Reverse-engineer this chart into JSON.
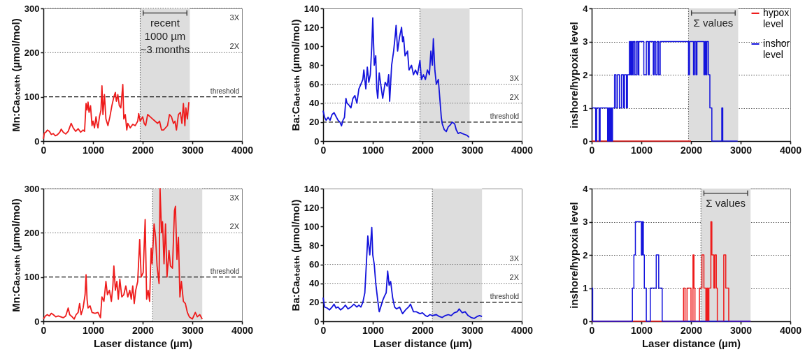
{
  "chart_data": [
    {
      "type": "line",
      "ylabel": "Mn:Caₒₜₒₗᵢₜₕ (µmol/mol)",
      "xlim": [
        0,
        4000
      ],
      "xticks": [
        0,
        1000,
        2000,
        3000,
        4000
      ],
      "ylim": [
        0,
        300
      ],
      "yticks": [
        0,
        100,
        200,
        300
      ],
      "grid": false,
      "color": "#ee1c1c",
      "x": [
        0,
        20,
        50,
        80,
        120,
        160,
        200,
        240,
        280,
        330,
        360,
        400,
        450,
        500,
        560,
        600,
        650,
        700,
        750,
        800,
        830,
        860,
        880,
        900,
        920,
        950,
        980,
        1000,
        1030,
        1060,
        1080,
        1100,
        1130,
        1160,
        1180,
        1200,
        1230,
        1260,
        1300,
        1340,
        1380,
        1420,
        1450,
        1470,
        1500,
        1530,
        1560,
        1600,
        1620,
        1650,
        1680,
        1700,
        1750,
        1800,
        1850,
        1900,
        1920,
        1950,
        2000,
        2030,
        2060,
        2100,
        2150,
        2200,
        2250,
        2300,
        2340,
        2380,
        2420,
        2460,
        2500,
        2540,
        2580,
        2620,
        2650,
        2680,
        2720,
        2760,
        2790,
        2820,
        2850,
        2870,
        2900,
        2930
      ],
      "values": [
        5,
        18,
        20,
        25,
        22,
        15,
        17,
        12,
        14,
        20,
        27,
        20,
        16,
        22,
        40,
        30,
        22,
        28,
        20,
        25,
        22,
        85,
        70,
        88,
        65,
        80,
        35,
        45,
        30,
        55,
        40,
        30,
        55,
        70,
        125,
        60,
        105,
        50,
        35,
        55,
        80,
        100,
        110,
        90,
        105,
        80,
        75,
        128,
        50,
        60,
        25,
        40,
        30,
        38,
        35,
        45,
        62,
        45,
        55,
        40,
        35,
        60,
        55,
        50,
        45,
        40,
        45,
        25,
        25,
        30,
        35,
        60,
        55,
        40,
        45,
        25,
        60,
        65,
        40,
        85,
        35,
        75,
        50,
        88
      ],
      "bands": [
        {
          "axis": "x",
          "from": 1950,
          "to": 2950,
          "color": "#dddddd"
        }
      ],
      "ref_lines": [
        {
          "axis": "x",
          "value": 1950,
          "line_style": "dotted",
          "color": "#555555"
        },
        {
          "axis": "y",
          "value": 100,
          "label": "threshold",
          "line_style": "dashed",
          "color": "#111111"
        },
        {
          "axis": "y",
          "value": 200,
          "label": "2X",
          "line_style": "dotted",
          "color": "#777777"
        },
        {
          "axis": "y",
          "value": 300,
          "label": "3X",
          "line_style": "dotted",
          "color": "#777777"
        }
      ],
      "annotations": [
        "recent\n1000 µm\n~3 months"
      ]
    },
    {
      "type": "line",
      "ylabel": "Ba:Caₒₜₒₗᵢₜₕ (µmol/mol)",
      "xlim": [
        0,
        4000
      ],
      "xticks": [
        0,
        1000,
        2000,
        3000,
        4000
      ],
      "ylim": [
        0,
        140
      ],
      "yticks": [
        0,
        20,
        40,
        60,
        80,
        100,
        120,
        140
      ],
      "grid": false,
      "color": "#1414dc",
      "x": [
        0,
        30,
        60,
        100,
        140,
        180,
        220,
        260,
        300,
        340,
        370,
        400,
        430,
        460,
        480,
        520,
        560,
        600,
        640,
        680,
        720,
        760,
        800,
        820,
        860,
        890,
        920,
        950,
        980,
        1000,
        1030,
        1060,
        1080,
        1100,
        1130,
        1160,
        1200,
        1250,
        1290,
        1320,
        1340,
        1380,
        1420,
        1450,
        1470,
        1500,
        1540,
        1580,
        1600,
        1620,
        1650,
        1700,
        1730,
        1780,
        1820,
        1860,
        1900,
        1950,
        1980,
        2020,
        2060,
        2100,
        2140,
        2170,
        2200,
        2220,
        2250,
        2280,
        2320,
        2350,
        2380,
        2400,
        2440,
        2480,
        2520,
        2560,
        2600,
        2650,
        2680,
        2720,
        2760,
        2800,
        2850,
        2900,
        2940
      ],
      "values": [
        32,
        25,
        22,
        25,
        22,
        28,
        30,
        26,
        22,
        20,
        16,
        22,
        25,
        45,
        40,
        38,
        35,
        45,
        48,
        40,
        55,
        60,
        65,
        75,
        55,
        78,
        62,
        70,
        100,
        130,
        80,
        90,
        55,
        45,
        72,
        60,
        45,
        62,
        58,
        70,
        42,
        80,
        95,
        110,
        122,
        95,
        110,
        120,
        105,
        110,
        90,
        95,
        75,
        80,
        70,
        75,
        70,
        85,
        65,
        70,
        65,
        75,
        70,
        95,
        80,
        108,
        75,
        60,
        65,
        45,
        25,
        18,
        12,
        10,
        15,
        17,
        20,
        18,
        12,
        8,
        9,
        8,
        7,
        6,
        4
      ],
      "bands": [
        {
          "axis": "x",
          "from": 1950,
          "to": 2950,
          "color": "#dddddd"
        }
      ],
      "ref_lines": [
        {
          "axis": "x",
          "value": 1950,
          "line_style": "dotted",
          "color": "#555555"
        },
        {
          "axis": "y",
          "value": 20,
          "label": "threshold",
          "line_style": "dashed",
          "color": "#111111"
        },
        {
          "axis": "y",
          "value": 40,
          "label": "2X",
          "line_style": "dotted",
          "color": "#777777"
        },
        {
          "axis": "y",
          "value": 60,
          "label": "3X",
          "line_style": "dotted",
          "color": "#777777"
        }
      ]
    },
    {
      "type": "step",
      "ylabel": "inshore/hypoxia level",
      "xlim": [
        0,
        4000
      ],
      "xticks": [
        0,
        1000,
        2000,
        3000,
        4000
      ],
      "ylim": [
        0,
        4
      ],
      "yticks": [
        0,
        1,
        2,
        3,
        4
      ],
      "grid": "y",
      "legend": "top right",
      "series": [
        {
          "name": "hypox level",
          "color": "#ee1c1c",
          "x": [
            0,
            2000
          ],
          "values": [
            0,
            0
          ]
        },
        {
          "name": "inshor level",
          "color": "#1414dc",
          "x": [
            0,
            80,
            100,
            150,
            170,
            320,
            340,
            360,
            380,
            400,
            420,
            460,
            490,
            520,
            560,
            600,
            640,
            660,
            700,
            720,
            760,
            780,
            800,
            820,
            840,
            870,
            900,
            930,
            950,
            1050,
            1100,
            1140,
            1160,
            1240,
            1260,
            1290,
            1320,
            1350,
            1380,
            1950,
            1970,
            2050,
            2070,
            2100,
            2120,
            2260,
            2280,
            2300,
            2320,
            2350,
            2380,
            2420,
            2620,
            2640,
            2940
          ],
          "values": [
            1,
            0,
            1,
            0,
            1,
            0,
            1,
            0,
            1,
            0,
            1,
            2,
            1,
            2,
            1,
            2,
            1,
            2,
            1,
            2,
            3,
            2,
            3,
            2,
            3,
            2,
            3,
            2,
            3,
            2,
            3,
            2,
            3,
            2,
            3,
            2,
            3,
            2,
            3,
            2,
            3,
            2,
            3,
            2,
            3,
            2,
            3,
            2,
            3,
            2,
            1,
            0,
            1,
            0,
            0
          ]
        }
      ],
      "bands": [
        {
          "axis": "x",
          "from": 1950,
          "to": 2950,
          "color": "#dddddd"
        }
      ],
      "ref_lines": [
        {
          "axis": "x",
          "value": 1950,
          "line_style": "dotted",
          "color": "#555555"
        }
      ],
      "annotations": [
        "Σ values"
      ]
    },
    {
      "type": "line",
      "xlabel": "Laser distance (µm)",
      "ylabel": "Mn:Caₒₜₒₗᵢₜₕ (µmol/mol)",
      "xlim": [
        0,
        4000
      ],
      "xticks": [
        0,
        1000,
        2000,
        3000,
        4000
      ],
      "ylim": [
        0,
        300
      ],
      "yticks": [
        0,
        100,
        200,
        300
      ],
      "grid": false,
      "color": "#ee1c1c",
      "x": [
        0,
        40,
        80,
        120,
        160,
        200,
        250,
        300,
        350,
        400,
        450,
        500,
        530,
        580,
        620,
        660,
        700,
        730,
        760,
        800,
        840,
        860,
        880,
        900,
        940,
        980,
        1040,
        1100,
        1150,
        1180,
        1220,
        1260,
        1290,
        1330,
        1370,
        1400,
        1420,
        1450,
        1480,
        1510,
        1540,
        1580,
        1620,
        1660,
        1700,
        1740,
        1770,
        1800,
        1830,
        1860,
        1900,
        1940,
        1970,
        2010,
        2050,
        2080,
        2110,
        2140,
        2170,
        2190,
        2230,
        2260,
        2290,
        2330,
        2350,
        2380,
        2400,
        2430,
        2460,
        2490,
        2530,
        2560,
        2600,
        2640,
        2660,
        2690,
        2720,
        2750,
        2780,
        2820,
        2860,
        2900,
        2940,
        3000,
        3060,
        3100,
        3150,
        3200
      ],
      "values": [
        5,
        12,
        15,
        12,
        18,
        15,
        10,
        12,
        10,
        8,
        12,
        30,
        15,
        10,
        5,
        15,
        20,
        40,
        15,
        30,
        60,
        105,
        50,
        30,
        35,
        20,
        18,
        20,
        8,
        55,
        45,
        90,
        60,
        70,
        45,
        80,
        125,
        70,
        90,
        50,
        95,
        55,
        60,
        80,
        55,
        70,
        50,
        80,
        40,
        70,
        90,
        185,
        100,
        110,
        230,
        50,
        70,
        45,
        165,
        130,
        220,
        190,
        125,
        85,
        300,
        200,
        225,
        130,
        220,
        100,
        160,
        125,
        120,
        250,
        260,
        140,
        190,
        55,
        90,
        45,
        40,
        20,
        10,
        5,
        20,
        10,
        15,
        5
      ],
      "bands": [
        {
          "axis": "x",
          "from": 2200,
          "to": 3200,
          "color": "#dddddd"
        }
      ],
      "ref_lines": [
        {
          "axis": "x",
          "value": 2200,
          "line_style": "dotted",
          "color": "#555555"
        },
        {
          "axis": "y",
          "value": 100,
          "label": "threshold",
          "line_style": "dashed",
          "color": "#111111"
        },
        {
          "axis": "y",
          "value": 200,
          "label": "2X",
          "line_style": "dotted",
          "color": "#777777"
        },
        {
          "axis": "y",
          "value": 300,
          "label": "3X",
          "line_style": "dotted",
          "color": "#777777"
        }
      ]
    },
    {
      "type": "line",
      "xlabel": "Laser distance (µm)",
      "ylabel": "Ba:Caₒₜₒₗᵢₜₕ (µmol/mol)",
      "xlim": [
        0,
        4000
      ],
      "xticks": [
        0,
        1000,
        2000,
        3000,
        4000
      ],
      "ylim": [
        0,
        140
      ],
      "yticks": [
        0,
        20,
        40,
        60,
        80,
        100,
        120,
        140
      ],
      "grid": false,
      "color": "#1414dc",
      "x": [
        0,
        30,
        80,
        130,
        180,
        220,
        260,
        300,
        350,
        400,
        450,
        500,
        560,
        620,
        680,
        720,
        760,
        800,
        840,
        880,
        900,
        940,
        980,
        1000,
        1030,
        1060,
        1100,
        1130,
        1160,
        1200,
        1240,
        1270,
        1300,
        1330,
        1360,
        1400,
        1440,
        1480,
        1540,
        1600,
        1660,
        1720,
        1760,
        1820,
        1880,
        1950,
        2000,
        2060,
        2100,
        2150,
        2200,
        2280,
        2340,
        2400,
        2460,
        2520,
        2580,
        2640,
        2700,
        2740,
        2800,
        2860,
        2920,
        2980,
        3040,
        3100,
        3150,
        3200
      ],
      "values": [
        25,
        15,
        14,
        12,
        15,
        18,
        14,
        15,
        12,
        14,
        17,
        13,
        15,
        18,
        15,
        17,
        15,
        20,
        30,
        70,
        90,
        70,
        99,
        70,
        60,
        40,
        22,
        10,
        15,
        22,
        27,
        30,
        53,
        38,
        42,
        25,
        15,
        13,
        15,
        8,
        12,
        15,
        18,
        10,
        10,
        8,
        9,
        6,
        5,
        7,
        6,
        7,
        5,
        4,
        6,
        7,
        6,
        9,
        10,
        13,
        9,
        10,
        6,
        4,
        3,
        5,
        6,
        5
      ],
      "bands": [
        {
          "axis": "x",
          "from": 2200,
          "to": 3200,
          "color": "#dddddd"
        }
      ],
      "ref_lines": [
        {
          "axis": "x",
          "value": 2200,
          "line_style": "dotted",
          "color": "#555555"
        },
        {
          "axis": "y",
          "value": 20,
          "label": "threshold",
          "line_style": "dashed",
          "color": "#111111"
        },
        {
          "axis": "y",
          "value": 40,
          "label": "2X",
          "line_style": "dotted",
          "color": "#777777"
        },
        {
          "axis": "y",
          "value": 60,
          "label": "3X",
          "line_style": "dotted",
          "color": "#777777"
        }
      ]
    },
    {
      "type": "step",
      "xlabel": "Laser distance (µm)",
      "ylabel": "inshore/hypoxia level",
      "xlim": [
        0,
        4000
      ],
      "xticks": [
        0,
        1000,
        2000,
        3000,
        4000
      ],
      "ylim": [
        0,
        4
      ],
      "yticks": [
        0,
        1,
        2,
        3,
        4
      ],
      "grid": "y",
      "series": [
        {
          "color": "#ee1c1c",
          "x": [
            0,
            1850,
            1880,
            1920,
            2000,
            2040,
            2060,
            2080,
            2170,
            2220,
            2260,
            2300,
            2320,
            2340,
            2360,
            2400,
            2420,
            2460,
            2480,
            2510,
            2530,
            2660,
            2700,
            2760,
            3200
          ],
          "values": [
            0,
            1,
            0,
            1,
            0,
            2,
            1,
            0,
            1,
            2,
            1,
            0,
            1,
            0,
            1,
            3,
            2,
            1,
            2,
            1,
            0,
            2,
            1,
            0,
            0
          ]
        },
        {
          "color": "#1414dc",
          "x": [
            0,
            20,
            820,
            850,
            880,
            1000,
            1020,
            1040,
            1060,
            1100,
            1180,
            1300,
            1350,
            1420,
            3200
          ],
          "values": [
            1,
            0,
            1,
            2,
            3,
            2,
            3,
            2,
            1,
            0,
            1,
            2,
            1,
            0,
            0
          ]
        }
      ],
      "bands": [
        {
          "axis": "x",
          "from": 2200,
          "to": 3200,
          "color": "#dddddd"
        }
      ],
      "ref_lines": [
        {
          "axis": "x",
          "value": 2200,
          "line_style": "dotted",
          "color": "#555555"
        }
      ],
      "annotations": [
        "Σ values"
      ]
    }
  ]
}
